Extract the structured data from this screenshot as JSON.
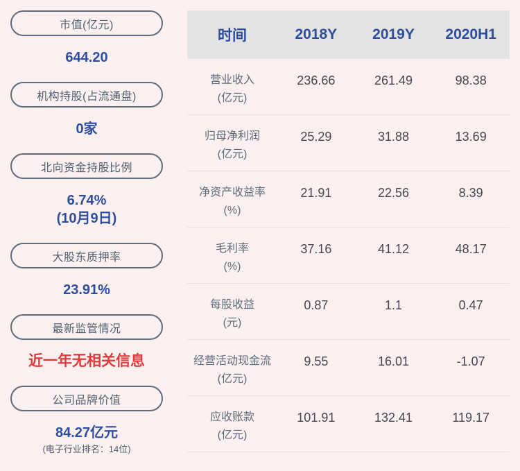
{
  "colors": {
    "background": "#fbf0f0",
    "accent_blue": "#2d4d9f",
    "alert_red": "#e03a3a",
    "pill_border": "#5d6b7a",
    "pill_text": "#4f5f6d",
    "table_header_bg": "#e3e3e3",
    "row_label_gray": "#5d6a77",
    "row_value_gray": "#46464e",
    "separator": "#e6dede"
  },
  "sidebar": {
    "items": [
      {
        "label": "市值(亿元)",
        "value": "644.20"
      },
      {
        "label": "机构持股(占流通盘)",
        "value": "0家"
      },
      {
        "label": "北向资金持股比例",
        "value": "6.74%",
        "value2": "(10月9日)"
      },
      {
        "label": "大股东质押率",
        "value": "23.91%"
      },
      {
        "label": "最新监管情况",
        "value": "近一年无相关信息"
      },
      {
        "label": "公司品牌价值",
        "value": "84.27亿元",
        "sub": "(电子行业排名：14位)"
      }
    ]
  },
  "table": {
    "columns": [
      "时间",
      "2018Y",
      "2019Y",
      "2020H1"
    ],
    "rows": [
      {
        "name": "营业收入",
        "unit": "(亿元)",
        "values": [
          "236.66",
          "261.49",
          "98.38"
        ]
      },
      {
        "name": "归母净利润",
        "unit": "(亿元)",
        "values": [
          "25.29",
          "31.88",
          "13.69"
        ]
      },
      {
        "name": "净资产收益率",
        "unit": "(%)",
        "values": [
          "21.91",
          "22.56",
          "8.39"
        ]
      },
      {
        "name": "毛利率",
        "unit": "(%)",
        "values": [
          "37.16",
          "41.12",
          "48.17"
        ]
      },
      {
        "name": "每股收益",
        "unit": "(元)",
        "values": [
          "0.87",
          "1.1",
          "0.47"
        ]
      },
      {
        "name": "经营活动现金流",
        "unit": "(亿元)",
        "values": [
          "9.55",
          "16.01",
          "-1.07"
        ]
      },
      {
        "name": "应收账款",
        "unit": "(亿元)",
        "values": [
          "101.91",
          "132.41",
          "119.17"
        ]
      }
    ]
  },
  "chart_data": {
    "type": "table",
    "title": "",
    "columns": [
      "时间",
      "2018Y",
      "2019Y",
      "2020H1"
    ],
    "rows": [
      [
        "营业收入(亿元)",
        236.66,
        261.49,
        98.38
      ],
      [
        "归母净利润(亿元)",
        25.29,
        31.88,
        13.69
      ],
      [
        "净资产收益率(%)",
        21.91,
        22.56,
        8.39
      ],
      [
        "毛利率(%)",
        37.16,
        41.12,
        48.17
      ],
      [
        "每股收益(元)",
        0.87,
        1.1,
        0.47
      ],
      [
        "经营活动现金流(亿元)",
        9.55,
        16.01,
        -1.07
      ],
      [
        "应收账款(亿元)",
        101.91,
        132.41,
        119.17
      ]
    ],
    "stats": [
      [
        "市值(亿元)",
        "644.20"
      ],
      [
        "机构持股(占流通盘)",
        "0家"
      ],
      [
        "北向资金持股比例",
        "6.74% (10月9日)"
      ],
      [
        "大股东质押率",
        "23.91%"
      ],
      [
        "最新监管情况",
        "近一年无相关信息"
      ],
      [
        "公司品牌价值",
        "84.27亿元 (电子行业排名：14位)"
      ]
    ]
  }
}
